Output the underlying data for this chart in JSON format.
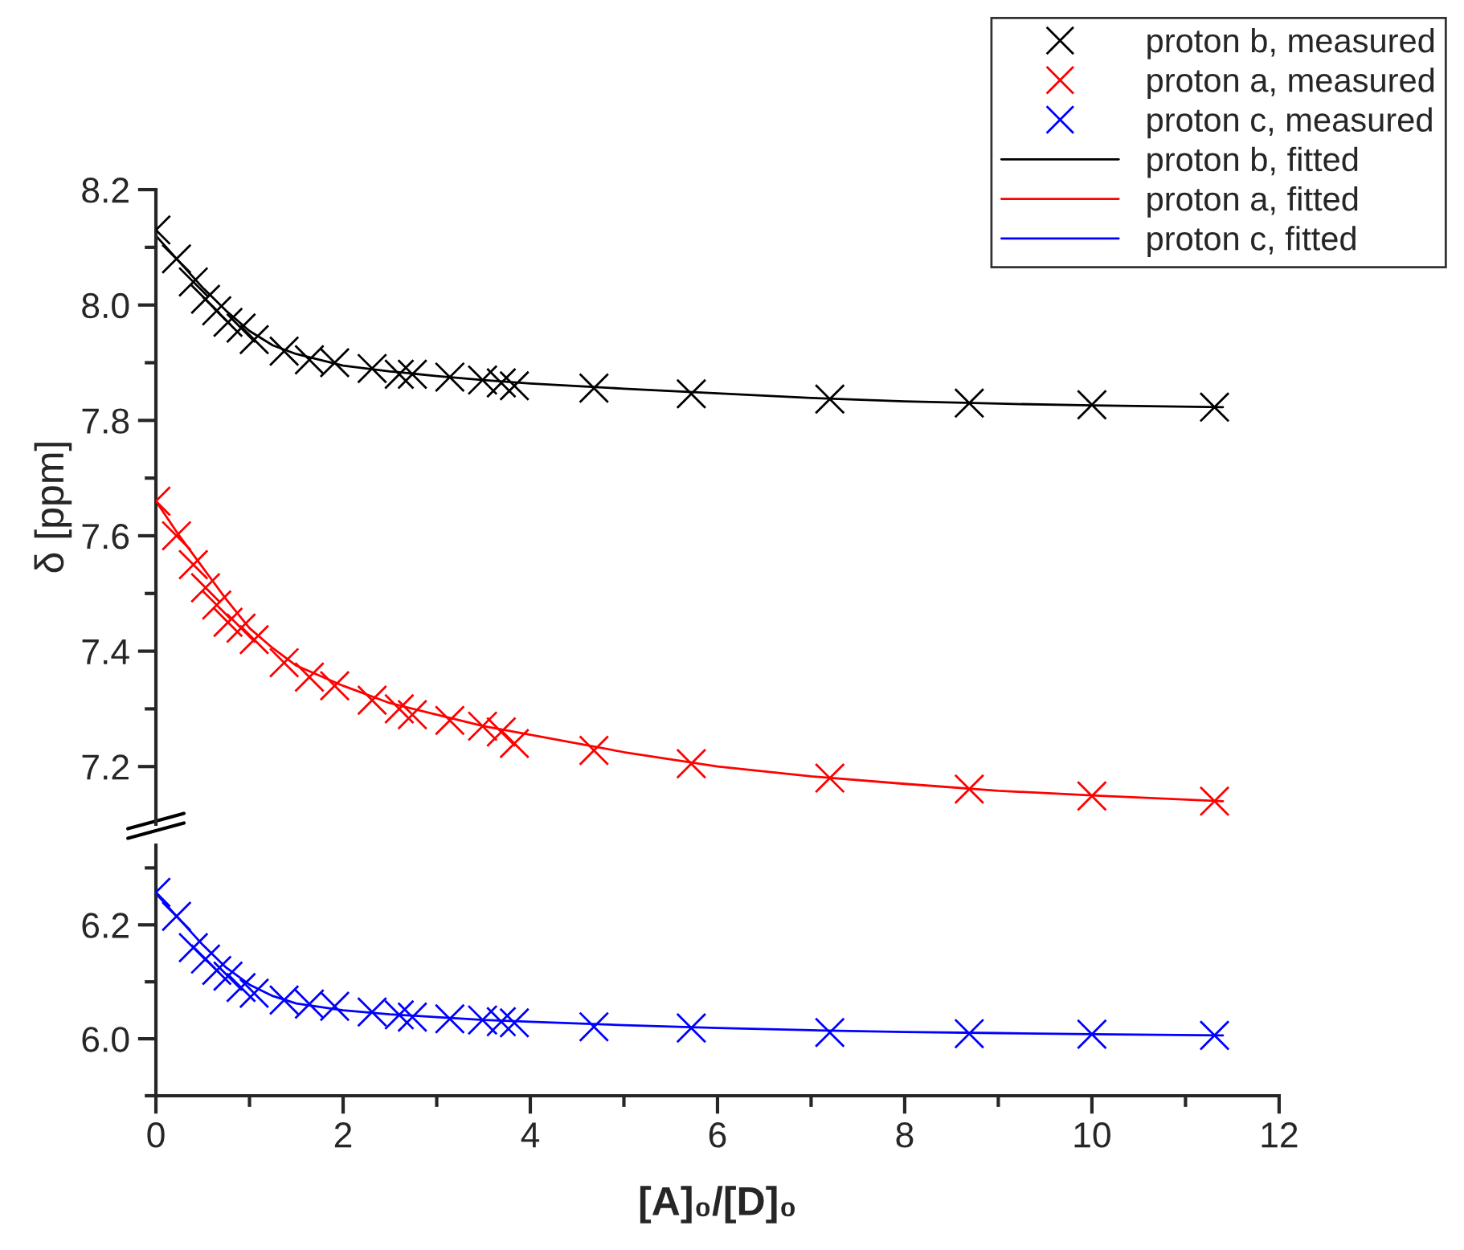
{
  "chart_data": [
    {
      "type": "scatter",
      "ylabel": "δ [ppm]",
      "xlim": [
        0,
        12
      ],
      "ylim": [
        7.1,
        8.2
      ],
      "tick_labels": "y",
      "legend": "top right",
      "yticks": [
        {
          "value": 7.2,
          "label": "7.2"
        },
        {
          "value": 7.3,
          "label": null
        },
        {
          "value": 7.4,
          "label": "7.4"
        },
        {
          "value": 7.5,
          "label": null
        },
        {
          "value": 7.6,
          "label": "7.6"
        },
        {
          "value": 7.7,
          "label": null
        },
        {
          "value": 7.8,
          "label": "7.8"
        },
        {
          "value": 7.9,
          "label": null
        },
        {
          "value": 8.0,
          "label": "8.0"
        },
        {
          "value": 8.1,
          "label": null
        },
        {
          "value": 8.2,
          "label": "8.2"
        }
      ],
      "series": [
        {
          "name": "proton b, measured",
          "marker": "cross",
          "color": "#000000",
          "x": [
            0,
            0.22,
            0.4,
            0.53,
            0.65,
            0.77,
            0.91,
            1.05,
            1.37,
            1.64,
            1.91,
            2.31,
            2.6,
            2.74,
            3.14,
            3.49,
            3.69,
            3.83,
            4.68,
            5.72,
            7.2,
            8.69,
            10.0,
            11.31
          ],
          "values": [
            8.13,
            8.08,
            8.04,
            8.01,
            7.99,
            7.97,
            7.96,
            7.94,
            7.92,
            7.905,
            7.9,
            7.89,
            7.88,
            7.88,
            7.875,
            7.87,
            7.865,
            7.86,
            7.856,
            7.846,
            7.837,
            7.83,
            7.827,
            7.823
          ]
        },
        {
          "name": "proton a, measured",
          "marker": "cross",
          "color": "#ff0000",
          "x": [
            0,
            0.22,
            0.4,
            0.53,
            0.65,
            0.77,
            0.91,
            1.05,
            1.37,
            1.64,
            1.91,
            2.31,
            2.6,
            2.74,
            3.14,
            3.49,
            3.69,
            3.83,
            4.68,
            5.72,
            7.2,
            8.69,
            10.0,
            11.31
          ],
          "values": [
            7.66,
            7.6,
            7.55,
            7.51,
            7.48,
            7.45,
            7.44,
            7.42,
            7.38,
            7.355,
            7.34,
            7.315,
            7.3,
            7.29,
            7.28,
            7.27,
            7.26,
            7.24,
            7.228,
            7.205,
            7.18,
            7.161,
            7.149,
            7.14
          ]
        },
        {
          "name": "proton b, fitted",
          "type": "line",
          "marker": "none",
          "color": "#000000",
          "x": [
            0,
            0.25,
            0.5,
            0.75,
            1,
            1.25,
            1.5,
            2,
            2.5,
            3,
            3.5,
            4,
            5,
            6,
            7,
            8,
            9,
            10,
            11.4
          ],
          "values": [
            8.12,
            8.075,
            8.03,
            7.99,
            7.955,
            7.93,
            7.915,
            7.895,
            7.885,
            7.877,
            7.87,
            7.864,
            7.855,
            7.847,
            7.839,
            7.833,
            7.829,
            7.826,
            7.823
          ]
        },
        {
          "name": "proton a, fitted",
          "type": "line",
          "marker": "none",
          "color": "#ff0000",
          "x": [
            0,
            0.25,
            0.5,
            0.75,
            1,
            1.25,
            1.5,
            2,
            2.5,
            3,
            3.5,
            4,
            5,
            6,
            7,
            8,
            9,
            10,
            11.4
          ],
          "values": [
            7.66,
            7.6,
            7.545,
            7.49,
            7.44,
            7.405,
            7.375,
            7.34,
            7.31,
            7.29,
            7.27,
            7.255,
            7.225,
            7.2,
            7.183,
            7.17,
            7.158,
            7.15,
            7.14
          ]
        }
      ]
    },
    {
      "type": "scatter",
      "xlabel": "[A]₀/[D]₀",
      "xlim": [
        0,
        12
      ],
      "ylim": [
        5.9,
        6.34
      ],
      "legend": "top right",
      "xticks": [
        0,
        {
          "value": 1,
          "label": null
        },
        2,
        {
          "value": 3,
          "label": null
        },
        4,
        {
          "value": 5,
          "label": null
        },
        6,
        {
          "value": 7,
          "label": null
        },
        8,
        {
          "value": 9,
          "label": null
        },
        10,
        {
          "value": 11,
          "label": null
        },
        12
      ],
      "yticks": [
        {
          "value": 5.9,
          "label": null
        },
        {
          "value": 6.0,
          "label": "6.0"
        },
        {
          "value": 6.1,
          "label": null
        },
        {
          "value": 6.2,
          "label": "6.2"
        },
        {
          "value": 6.3,
          "label": null
        }
      ],
      "series": [
        {
          "name": "proton c, measured",
          "marker": "cross",
          "color": "#0000ff",
          "x": [
            0,
            0.22,
            0.4,
            0.53,
            0.65,
            0.77,
            0.91,
            1.05,
            1.37,
            1.64,
            1.91,
            2.31,
            2.6,
            2.74,
            3.14,
            3.49,
            3.69,
            3.83,
            4.68,
            5.72,
            7.2,
            8.69,
            10.0,
            11.31
          ],
          "values": [
            6.257,
            6.215,
            6.16,
            6.14,
            6.12,
            6.11,
            6.09,
            6.08,
            6.068,
            6.061,
            6.057,
            6.047,
            6.042,
            6.038,
            6.035,
            6.033,
            6.03,
            6.028,
            6.021,
            6.019,
            6.011,
            6.009,
            6.008,
            6.006
          ]
        },
        {
          "name": "proton c, fitted",
          "type": "line",
          "marker": "none",
          "color": "#0000ff",
          "x": [
            0,
            0.25,
            0.5,
            0.75,
            1,
            1.25,
            1.5,
            2,
            2.5,
            3,
            3.5,
            4,
            5,
            6,
            7,
            8,
            9,
            10,
            11.4
          ],
          "values": [
            6.255,
            6.21,
            6.165,
            6.125,
            6.095,
            6.075,
            6.062,
            6.05,
            6.043,
            6.038,
            6.033,
            6.03,
            6.024,
            6.019,
            6.015,
            6.012,
            6.01,
            6.008,
            6.006
          ]
        }
      ]
    }
  ]
}
